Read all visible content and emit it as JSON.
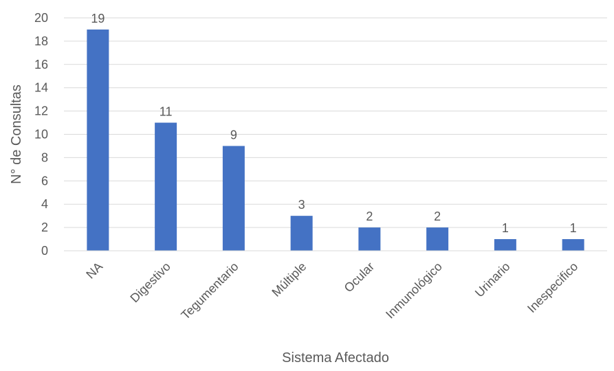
{
  "chart_data": {
    "type": "bar",
    "title": "",
    "xlabel": "Sistema Afectado",
    "ylabel": "N° de Consultas",
    "categories": [
      "NA",
      "Digestivo",
      "Tegumentario",
      "Múltiple",
      "Ocular",
      "Inmunológico",
      "Urinario",
      "Inespecifico"
    ],
    "values": [
      19,
      11,
      9,
      3,
      2,
      2,
      1,
      1
    ],
    "ylim": [
      0,
      20
    ],
    "yticks": [
      "0",
      "2",
      "4",
      "6",
      "8",
      "10",
      "12",
      "14",
      "16",
      "18",
      "20"
    ],
    "data_labels": [
      "19",
      "11",
      "9",
      "3",
      "2",
      "2",
      "1",
      "1"
    ],
    "grid": true,
    "legend": "none",
    "colors": {
      "bar": "#4472C4",
      "grid": "#D9D9D9",
      "text": "#595959",
      "axis": "#D9D9D9"
    }
  }
}
